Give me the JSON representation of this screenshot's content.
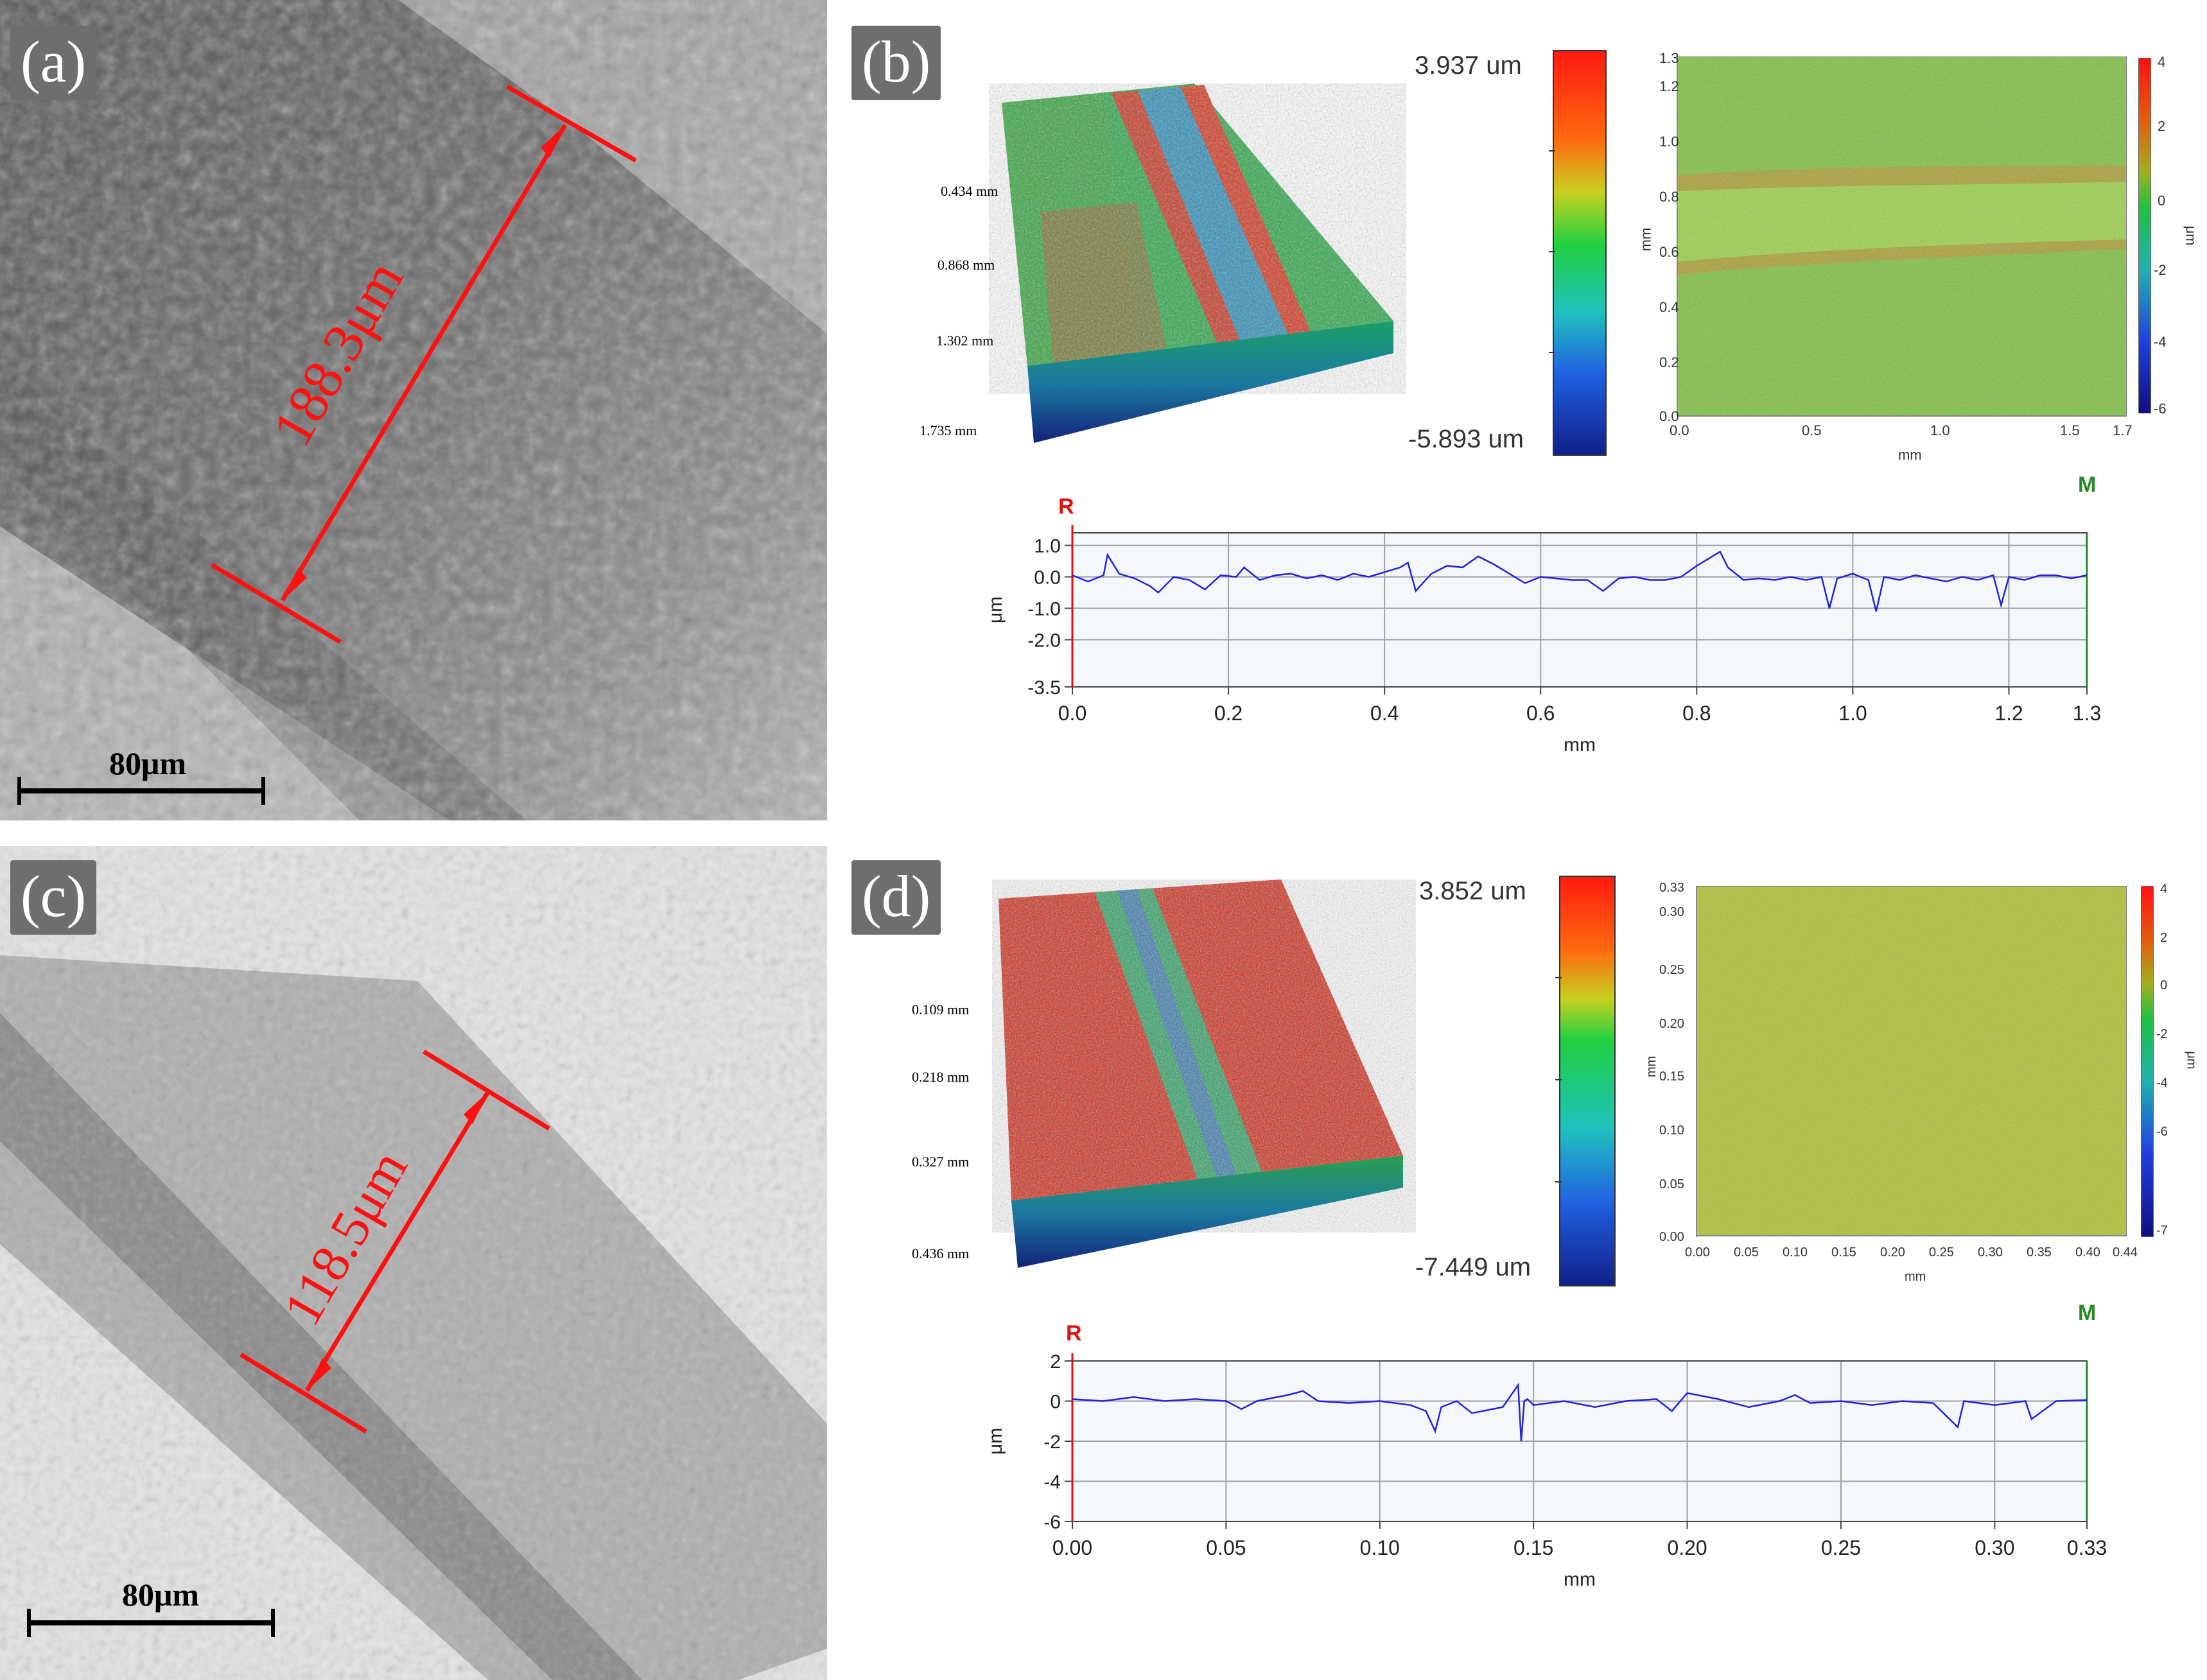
{
  "panels": {
    "a": {
      "label": "(a)",
      "width_label": "188.3μm",
      "scale_bar_label": "80μm"
    },
    "b": {
      "label": "(b)",
      "surface_3d": {
        "depth_labels": [
          "0.434 mm",
          "0.868 mm",
          "1.302 mm",
          "1.735 mm"
        ],
        "colorbar_max": "3.937 um",
        "colorbar_min": "-5.893 um"
      },
      "height_map": {
        "x_ticks": [
          "0.0",
          "0.5",
          "1.0",
          "1.5",
          "1.7"
        ],
        "y_ticks": [
          "0.0",
          "0.2",
          "0.4",
          "0.6",
          "0.8",
          "1.0",
          "1.2",
          "1.3"
        ],
        "x_label": "mm",
        "y_label": "mm",
        "colorbar_ticks": [
          "4",
          "2",
          "0",
          "-2",
          "-4",
          "-6"
        ],
        "colorbar_label": "μm"
      },
      "marker_R": "R",
      "marker_M": "M"
    },
    "c": {
      "label": "(c)",
      "width_label": "118.5μm",
      "scale_bar_label": "80μm"
    },
    "d": {
      "label": "(d)",
      "surface_3d": {
        "depth_labels": [
          "0.109 mm",
          "0.218 mm",
          "0.327 mm",
          "0.436 mm"
        ],
        "colorbar_max": "3.852 um",
        "colorbar_min": "-7.449 um"
      },
      "height_map": {
        "x_ticks": [
          "0.00",
          "0.05",
          "0.10",
          "0.15",
          "0.20",
          "0.25",
          "0.30",
          "0.35",
          "0.40",
          "0.44"
        ],
        "y_ticks": [
          "0.00",
          "0.05",
          "0.10",
          "0.15",
          "0.20",
          "0.25",
          "0.30",
          "0.33"
        ],
        "x_label": "mm",
        "y_label": "mm",
        "colorbar_ticks": [
          "4",
          "2",
          "0",
          "-2",
          "-4",
          "-6",
          "-7"
        ],
        "colorbar_label": "μm"
      },
      "marker_R": "R",
      "marker_M": "M"
    }
  },
  "chart_data": [
    {
      "type": "line",
      "panel": "b",
      "xlabel": "mm",
      "ylabel": "μm",
      "xlim": [
        0.0,
        1.3
      ],
      "ylim": [
        -3.5,
        1.4
      ],
      "x_ticks": [
        0.0,
        0.2,
        0.4,
        0.6,
        0.8,
        1.0,
        1.2,
        1.3
      ],
      "y_ticks": [
        1.0,
        0.0,
        -1.0,
        -2.0,
        -3.5
      ],
      "x_tick_labels": [
        "0.0",
        "0.2",
        "0.4",
        "0.6",
        "0.8",
        "1.0",
        "1.2",
        "1.3"
      ],
      "y_tick_labels": [
        "1.0",
        "0.0",
        "-1.0",
        "-2.0",
        "-3.5"
      ],
      "grid": true,
      "x": [
        0.0,
        0.02,
        0.04,
        0.045,
        0.06,
        0.08,
        0.1,
        0.11,
        0.13,
        0.15,
        0.17,
        0.19,
        0.21,
        0.22,
        0.24,
        0.26,
        0.28,
        0.3,
        0.32,
        0.34,
        0.36,
        0.38,
        0.4,
        0.42,
        0.43,
        0.44,
        0.46,
        0.48,
        0.5,
        0.52,
        0.54,
        0.56,
        0.58,
        0.6,
        0.62,
        0.64,
        0.66,
        0.68,
        0.7,
        0.72,
        0.74,
        0.76,
        0.78,
        0.8,
        0.81,
        0.82,
        0.83,
        0.84,
        0.86,
        0.88,
        0.9,
        0.92,
        0.94,
        0.96,
        0.97,
        0.98,
        1.0,
        1.02,
        1.03,
        1.04,
        1.06,
        1.08,
        1.1,
        1.12,
        1.14,
        1.16,
        1.18,
        1.19,
        1.2,
        1.22,
        1.24,
        1.26,
        1.28,
        1.3
      ],
      "values": [
        0.05,
        -0.15,
        0.05,
        0.7,
        0.1,
        -0.05,
        -0.3,
        -0.5,
        0.0,
        -0.1,
        -0.4,
        0.05,
        0.0,
        0.3,
        -0.1,
        0.05,
        0.1,
        -0.05,
        0.05,
        -0.1,
        0.1,
        0.0,
        0.15,
        0.3,
        0.45,
        -0.45,
        0.1,
        0.35,
        0.3,
        0.65,
        0.4,
        0.1,
        -0.2,
        0.0,
        -0.05,
        -0.1,
        -0.1,
        -0.45,
        -0.05,
        0.0,
        -0.1,
        -0.1,
        0.0,
        0.35,
        0.5,
        0.65,
        0.8,
        0.3,
        -0.1,
        -0.05,
        -0.1,
        0.0,
        -0.1,
        0.0,
        -1.0,
        -0.05,
        0.1,
        -0.1,
        -1.1,
        0.0,
        -0.1,
        0.05,
        -0.05,
        -0.15,
        0.0,
        -0.1,
        0.05,
        -0.9,
        0.0,
        -0.1,
        0.05,
        0.05,
        -0.05,
        0.05
      ]
    },
    {
      "type": "line",
      "panel": "d",
      "xlabel": "mm",
      "ylabel": "μm",
      "xlim": [
        0.0,
        0.33
      ],
      "ylim": [
        -6,
        2
      ],
      "x_ticks": [
        0.0,
        0.05,
        0.1,
        0.15,
        0.2,
        0.25,
        0.3,
        0.33
      ],
      "y_ticks": [
        2,
        0,
        -2,
        -4,
        -6
      ],
      "x_tick_labels": [
        "0.00",
        "0.05",
        "0.10",
        "0.15",
        "0.20",
        "0.25",
        "0.30",
        "0.33"
      ],
      "y_tick_labels": [
        "2",
        "0",
        "-2",
        "-4",
        "-6"
      ],
      "grid": true,
      "x": [
        0.0,
        0.01,
        0.02,
        0.03,
        0.04,
        0.05,
        0.055,
        0.06,
        0.07,
        0.075,
        0.08,
        0.09,
        0.1,
        0.11,
        0.115,
        0.118,
        0.12,
        0.125,
        0.13,
        0.14,
        0.145,
        0.146,
        0.147,
        0.148,
        0.15,
        0.16,
        0.17,
        0.18,
        0.19,
        0.195,
        0.2,
        0.21,
        0.22,
        0.23,
        0.235,
        0.24,
        0.25,
        0.26,
        0.27,
        0.28,
        0.288,
        0.29,
        0.3,
        0.31,
        0.312,
        0.32,
        0.33
      ],
      "values": [
        0.1,
        0.0,
        0.2,
        0.0,
        0.1,
        0.0,
        -0.4,
        0.0,
        0.3,
        0.5,
        0.0,
        -0.1,
        0.0,
        -0.2,
        -0.5,
        -1.5,
        -0.3,
        0.0,
        -0.6,
        -0.3,
        0.8,
        -2.0,
        0.0,
        0.1,
        -0.2,
        0.0,
        -0.3,
        0.0,
        0.1,
        -0.5,
        0.4,
        0.1,
        -0.3,
        0.0,
        0.3,
        -0.1,
        0.0,
        -0.2,
        0.0,
        -0.1,
        -1.3,
        0.0,
        -0.2,
        0.0,
        -0.9,
        0.0,
        0.05
      ]
    }
  ]
}
